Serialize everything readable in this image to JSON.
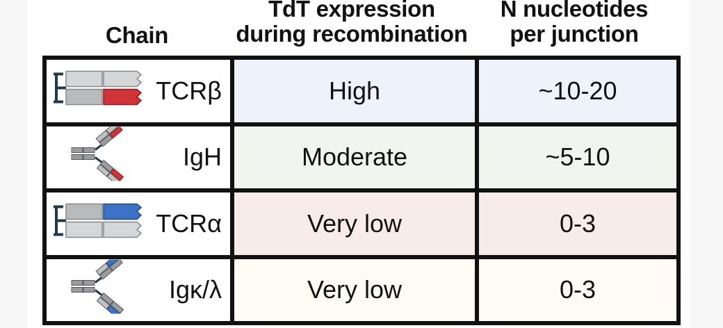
{
  "headers": {
    "chain": "Chain",
    "tdt": [
      "TdT expression",
      "during recombination"
    ],
    "n_nucleotides": [
      "N nucleotides",
      "per junction"
    ]
  },
  "rows": [
    {
      "chain": "TCRβ",
      "tdt": "High",
      "n": "~10-20",
      "bg": "#eef2fa",
      "icon": "tcr-beta-receptor-icon",
      "accent": "#d13438"
    },
    {
      "chain": "IgH",
      "tdt": "Moderate",
      "n": "~5-10",
      "bg": "#f2f4ef",
      "icon": "antibody-heavy-chain-icon",
      "accent": "#d13438"
    },
    {
      "chain": "TCRα",
      "tdt": "Very low",
      "n": "0-3",
      "bg": "#f8ecea",
      "icon": "tcr-alpha-receptor-icon",
      "accent": "#3d73c4"
    },
    {
      "chain": "Igκ/λ",
      "tdt": "Very low",
      "n": "0-3",
      "bg": "#fdfbf3",
      "icon": "antibody-light-chain-icon",
      "accent": "#3d73c4"
    }
  ]
}
